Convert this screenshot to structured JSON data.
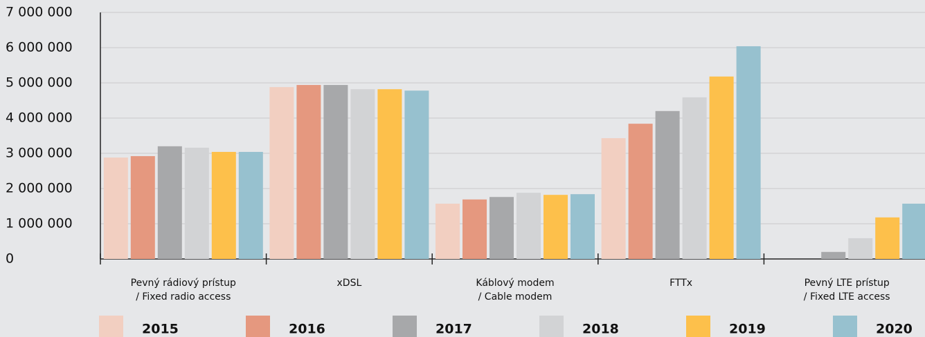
{
  "chart_data": {
    "type": "bar",
    "categories": [
      [
        "Pevný rádiový prístup",
        "/ Fixed radio access"
      ],
      [
        "xDSL"
      ],
      [
        "Káblový modem",
        "/ Cable modem"
      ],
      [
        "FTTx"
      ],
      [
        "Pevný LTE prístup",
        "/ Fixed LTE access"
      ]
    ],
    "series": [
      {
        "name": "2015",
        "color": "#f2cfc1",
        "values": [
          2880000,
          4880000,
          1570000,
          3430000,
          null
        ]
      },
      {
        "name": "2016",
        "color": "#e5987f",
        "values": [
          2920000,
          4940000,
          1690000,
          3840000,
          null
        ]
      },
      {
        "name": "2017",
        "color": "#a7a8aa",
        "values": [
          3200000,
          4940000,
          1760000,
          4200000,
          200000
        ]
      },
      {
        "name": "2018",
        "color": "#d2d3d5",
        "values": [
          3160000,
          4820000,
          1880000,
          4590000,
          590000
        ]
      },
      {
        "name": "2019",
        "color": "#fdc04b",
        "values": [
          3040000,
          4820000,
          1820000,
          5180000,
          1180000
        ]
      },
      {
        "name": "2020",
        "color": "#97c1cf",
        "values": [
          3040000,
          4780000,
          1840000,
          6040000,
          1570000
        ]
      }
    ],
    "ylim": [
      0,
      7000000
    ],
    "yticks": [
      0,
      {
        "value": 1000000,
        "label": "1 000 000"
      },
      {
        "value": 2000000,
        "label": "2 000 000"
      },
      {
        "value": 3000000,
        "label": "3 000 000"
      },
      {
        "value": 4000000,
        "label": "4 000 000"
      },
      {
        "value": 5000000,
        "label": "5 000 000"
      },
      {
        "value": 6000000,
        "label": "6 000 000"
      },
      {
        "value": 7000000,
        "label": "7 000 000"
      }
    ],
    "grid": true
  }
}
